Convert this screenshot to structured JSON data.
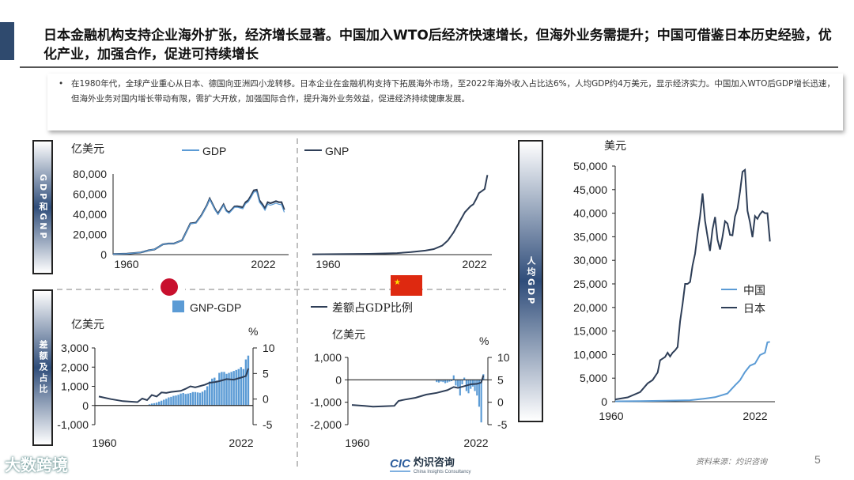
{
  "header": {
    "title": "日本金融机构支持企业海外扩张，经济增长显著。中国加入WTO后经济快速增长，但海外业务需提升；中国可借鉴日本历史经验，优化产业，加强合作，促进可持续增长"
  },
  "summary": {
    "bullet": "在1980年代，全球产业重心从日本、德国向亚洲四小龙转移。日本企业在金融机构支持下拓展海外市场，至2022年海外收入占比达6%，人均GDP约4万美元，显示经济实力。中国加入WTO后GDP增长迅速，但海外业务对国内增长带动有限，需扩大开放，加强国际合作，提升海外业务效益，促进经济持续健康发展。"
  },
  "side_labels": {
    "gdp_gnp": "GDP和GNP",
    "diff": "差额及占比",
    "per_capita": "人均GDP"
  },
  "flags": {
    "japan": "Japan",
    "china": "China"
  },
  "colors": {
    "gdp": "#5b9bd5",
    "gnp": "#2e3e57",
    "bar": "#5b9bd5",
    "ratio": "#2e3e57",
    "china": "#5b9bd5",
    "japan": "#2e3e57",
    "accent": "#2f4a6e"
  },
  "footer": {
    "source": "资料来源：灼识咨询",
    "page": "5",
    "logo_mark": "CIC",
    "logo_cn": "灼识咨询",
    "logo_en": "China Insights Consultancy",
    "watermark": "大数跨境"
  },
  "chart_data": [
    {
      "id": "japan_gdp_gnp",
      "type": "line",
      "ylabel": "亿美元",
      "ylim": [
        0,
        80000
      ],
      "yticks": [
        "80,000",
        "60,000",
        "40,000",
        "20,000",
        "0"
      ],
      "xticks": [
        "1960",
        "2022"
      ],
      "legend": [
        "GDP",
        "GNP"
      ],
      "series": [
        {
          "name": "GDP",
          "points": [
            [
              1960,
              443
            ],
            [
              1965,
              910
            ],
            [
              1970,
              2120
            ],
            [
              1973,
              4300
            ],
            [
              1975,
              5200
            ],
            [
              1978,
              10100
            ],
            [
              1980,
              11000
            ],
            [
              1982,
              11000
            ],
            [
              1985,
              14000
            ],
            [
              1987,
              25000
            ],
            [
              1988,
              30700
            ],
            [
              1990,
              31300
            ],
            [
              1992,
              38500
            ],
            [
              1994,
              48500
            ],
            [
              1995,
              55000
            ],
            [
              1997,
              44000
            ],
            [
              1998,
              40000
            ],
            [
              2000,
              49000
            ],
            [
              2001,
              43000
            ],
            [
              2002,
              41000
            ],
            [
              2004,
              47000
            ],
            [
              2005,
              47000
            ],
            [
              2007,
              45500
            ],
            [
              2008,
              50500
            ],
            [
              2009,
              52500
            ],
            [
              2010,
              57000
            ],
            [
              2011,
              62000
            ],
            [
              2012,
              62500
            ],
            [
              2013,
              52000
            ],
            [
              2014,
              48500
            ],
            [
              2015,
              44000
            ],
            [
              2016,
              50000
            ],
            [
              2017,
              49000
            ],
            [
              2018,
              50000
            ],
            [
              2019,
              51000
            ],
            [
              2020,
              50000
            ],
            [
              2021,
              49500
            ],
            [
              2022,
              42000
            ]
          ]
        },
        {
          "name": "GNP",
          "points": [
            [
              1960,
              443
            ],
            [
              1965,
              910
            ],
            [
              1970,
              2120
            ],
            [
              1973,
              4300
            ],
            [
              1975,
              5200
            ],
            [
              1978,
              10100
            ],
            [
              1980,
              11000
            ],
            [
              1982,
              11000
            ],
            [
              1985,
              14200
            ],
            [
              1987,
              25300
            ],
            [
              1988,
              31000
            ],
            [
              1990,
              31700
            ],
            [
              1992,
              39000
            ],
            [
              1994,
              49000
            ],
            [
              1995,
              55600
            ],
            [
              1997,
              44600
            ],
            [
              1998,
              40600
            ],
            [
              2000,
              49700
            ],
            [
              2001,
              43700
            ],
            [
              2002,
              41700
            ],
            [
              2004,
              47800
            ],
            [
              2005,
              48000
            ],
            [
              2007,
              47000
            ],
            [
              2008,
              52000
            ],
            [
              2009,
              54000
            ],
            [
              2010,
              58700
            ],
            [
              2011,
              63800
            ],
            [
              2012,
              64300
            ],
            [
              2013,
              53800
            ],
            [
              2014,
              50200
            ],
            [
              2015,
              45900
            ],
            [
              2016,
              51900
            ],
            [
              2017,
              51000
            ],
            [
              2018,
              51900
            ],
            [
              2019,
              53000
            ],
            [
              2020,
              52000
            ],
            [
              2021,
              52000
            ],
            [
              2022,
              44500
            ]
          ]
        }
      ]
    },
    {
      "id": "china_gnp",
      "type": "line",
      "xticks": [
        "1960",
        "2022"
      ],
      "ylim": [
        0,
        80000
      ],
      "series": [
        {
          "name": "GNP",
          "points": [
            [
              1960,
              300
            ],
            [
              1980,
              800
            ],
            [
              1990,
              1500
            ],
            [
              1995,
              2500
            ],
            [
              2000,
              4000
            ],
            [
              2003,
              5500
            ],
            [
              2006,
              9000
            ],
            [
              2008,
              14000
            ],
            [
              2010,
              22000
            ],
            [
              2012,
              32000
            ],
            [
              2014,
              42000
            ],
            [
              2016,
              48000
            ],
            [
              2017,
              50000
            ],
            [
              2018,
              55000
            ],
            [
              2019,
              61000
            ],
            [
              2020,
              63000
            ],
            [
              2021,
              65000
            ],
            [
              2022,
              79000
            ]
          ]
        }
      ]
    },
    {
      "id": "japan_diff",
      "type": "bar+line",
      "ylabel": "亿美元",
      "y2label": "%",
      "ylim": [
        -1000,
        3000
      ],
      "y2lim": [
        -5,
        10
      ],
      "yticks": [
        "3,000",
        "2,000",
        "1,000",
        "0",
        "-1,000"
      ],
      "y2ticks": [
        "10",
        "5",
        "0",
        "-5"
      ],
      "xticks": [
        "1960",
        "2022"
      ],
      "legend": [
        "GNP-GDP",
        "差额占GDP比例"
      ],
      "bars": {
        "name": "GNP-GDP",
        "years": [
          1980,
          1981,
          1982,
          1983,
          1984,
          1985,
          1986,
          1987,
          1988,
          1989,
          1990,
          1991,
          1992,
          1993,
          1994,
          1995,
          1996,
          1997,
          1998,
          1999,
          2000,
          2001,
          2002,
          2003,
          2004,
          2005,
          2006,
          2007,
          2008,
          2009,
          2010,
          2011,
          2012,
          2013,
          2014,
          2015,
          2016,
          2017,
          2018,
          2019,
          2020,
          2021,
          2022
        ],
        "values": [
          10,
          60,
          100,
          120,
          150,
          200,
          250,
          300,
          350,
          420,
          450,
          500,
          520,
          560,
          620,
          650,
          600,
          620,
          650,
          700,
          700,
          680,
          660,
          720,
          800,
          1000,
          1250,
          1400,
          1450,
          1300,
          1700,
          1750,
          1750,
          1650,
          1700,
          1750,
          1800,
          1850,
          1900,
          2000,
          1900,
          2400,
          2600
        ]
      },
      "line": {
        "name": "差额占GDP比例",
        "points": [
          [
            1960,
            0.5
          ],
          [
            1965,
            0
          ],
          [
            1970,
            -0.4
          ],
          [
            1976,
            -0.6
          ],
          [
            1978,
            0.1
          ],
          [
            1980,
            -0.2
          ],
          [
            1982,
            0.8
          ],
          [
            1984,
            0.5
          ],
          [
            1986,
            1.3
          ],
          [
            1988,
            1.2
          ],
          [
            1990,
            1.4
          ],
          [
            1994,
            1.6
          ],
          [
            1996,
            2
          ],
          [
            1998,
            2.5
          ],
          [
            2000,
            2.3
          ],
          [
            2004,
            2.8
          ],
          [
            2006,
            3.2
          ],
          [
            2008,
            3.3
          ],
          [
            2010,
            3.5
          ],
          [
            2013,
            3.9
          ],
          [
            2016,
            3.8
          ],
          [
            2019,
            4.2
          ],
          [
            2021,
            4.5
          ],
          [
            2022,
            6
          ]
        ]
      }
    },
    {
      "id": "china_diff",
      "type": "bar+line",
      "ylabel": "亿美元",
      "y2label": "%",
      "ylim": [
        -2000,
        1000
      ],
      "y2lim": [
        -5,
        10
      ],
      "yticks": [
        "1,000",
        "0",
        "-1,000",
        "-2,000"
      ],
      "y2ticks": [
        "10",
        "5",
        "0",
        "-5"
      ],
      "xticks": [
        "1960",
        "2022"
      ],
      "bars": {
        "name": "GNP-GDP",
        "years": [
          2000,
          2001,
          2002,
          2003,
          2004,
          2005,
          2006,
          2007,
          2008,
          2009,
          2010,
          2011,
          2012,
          2013,
          2014,
          2015,
          2016,
          2017,
          2018,
          2019,
          2020,
          2021,
          2022
        ],
        "values": [
          -100,
          -120,
          -80,
          -100,
          -150,
          -120,
          -80,
          -60,
          200,
          -250,
          -300,
          -700,
          -200,
          100,
          -500,
          -600,
          -400,
          -300,
          -500,
          -700,
          -1200,
          -1900,
          250
        ]
      },
      "line": {
        "name": "差额占GDP比例",
        "points": [
          [
            1960,
            -0.6
          ],
          [
            1966,
            -0.8
          ],
          [
            1970,
            -1
          ],
          [
            1975,
            -0.9
          ],
          [
            1980,
            -0.8
          ],
          [
            1982,
            0.3
          ],
          [
            1985,
            0.6
          ],
          [
            1990,
            1
          ],
          [
            1995,
            1.7
          ],
          [
            2000,
            2.1
          ],
          [
            2005,
            2.7
          ],
          [
            2008,
            3.4
          ],
          [
            2010,
            3.2
          ],
          [
            2013,
            3.6
          ],
          [
            2016,
            4
          ],
          [
            2019,
            4.1
          ],
          [
            2021,
            4.4
          ],
          [
            2022,
            6
          ]
        ]
      }
    },
    {
      "id": "per_capita_gdp",
      "type": "line",
      "ylabel": "美元",
      "ylim": [
        0,
        50000
      ],
      "yticks": [
        "50,000",
        "45,000",
        "40,000",
        "35,000",
        "30,000",
        "25,000",
        "20,000",
        "15,000",
        "10,000",
        "5,000",
        "0"
      ],
      "xticks": [
        "1960",
        "2022"
      ],
      "legend": [
        "中国",
        "日本"
      ],
      "series": [
        {
          "name": "中国",
          "points": [
            [
              1960,
              90
            ],
            [
              1970,
              110
            ],
            [
              1980,
              195
            ],
            [
              1990,
              320
            ],
            [
              1995,
              610
            ],
            [
              2000,
              960
            ],
            [
              2005,
              1750
            ],
            [
              2008,
              3470
            ],
            [
              2010,
              4550
            ],
            [
              2012,
              6300
            ],
            [
              2014,
              7640
            ],
            [
              2016,
              8100
            ],
            [
              2018,
              9900
            ],
            [
              2019,
              10150
            ],
            [
              2020,
              10400
            ],
            [
              2021,
              12600
            ],
            [
              2022,
              12700
            ]
          ]
        },
        {
          "name": "日本",
          "points": [
            [
              1960,
              480
            ],
            [
              1965,
              920
            ],
            [
              1970,
              2040
            ],
            [
              1973,
              3900
            ],
            [
              1975,
              4600
            ],
            [
              1977,
              6200
            ],
            [
              1978,
              8800
            ],
            [
              1980,
              9500
            ],
            [
              1981,
              10400
            ],
            [
              1982,
              9600
            ],
            [
              1983,
              10400
            ],
            [
              1984,
              10900
            ],
            [
              1985,
              11600
            ],
            [
              1986,
              17100
            ],
            [
              1987,
              20700
            ],
            [
              1988,
              25000
            ],
            [
              1989,
              25000
            ],
            [
              1990,
              25400
            ],
            [
              1991,
              28900
            ],
            [
              1992,
              31400
            ],
            [
              1993,
              35700
            ],
            [
              1994,
              39300
            ],
            [
              1995,
              44200
            ],
            [
              1996,
              38400
            ],
            [
              1997,
              35000
            ],
            [
              1998,
              32000
            ],
            [
              1999,
              36600
            ],
            [
              2000,
              39200
            ],
            [
              2001,
              34400
            ],
            [
              2002,
              32300
            ],
            [
              2003,
              35000
            ],
            [
              2004,
              38300
            ],
            [
              2005,
              37800
            ],
            [
              2006,
              35400
            ],
            [
              2007,
              35300
            ],
            [
              2008,
              39300
            ],
            [
              2009,
              41000
            ],
            [
              2010,
              44500
            ],
            [
              2011,
              48800
            ],
            [
              2012,
              49200
            ],
            [
              2013,
              40500
            ],
            [
              2014,
              38100
            ],
            [
              2015,
              34900
            ],
            [
              2016,
              39400
            ],
            [
              2017,
              38800
            ],
            [
              2018,
              39800
            ],
            [
              2019,
              40400
            ],
            [
              2020,
              40000
            ],
            [
              2021,
              40000
            ],
            [
              2022,
              34000
            ]
          ]
        }
      ]
    }
  ]
}
